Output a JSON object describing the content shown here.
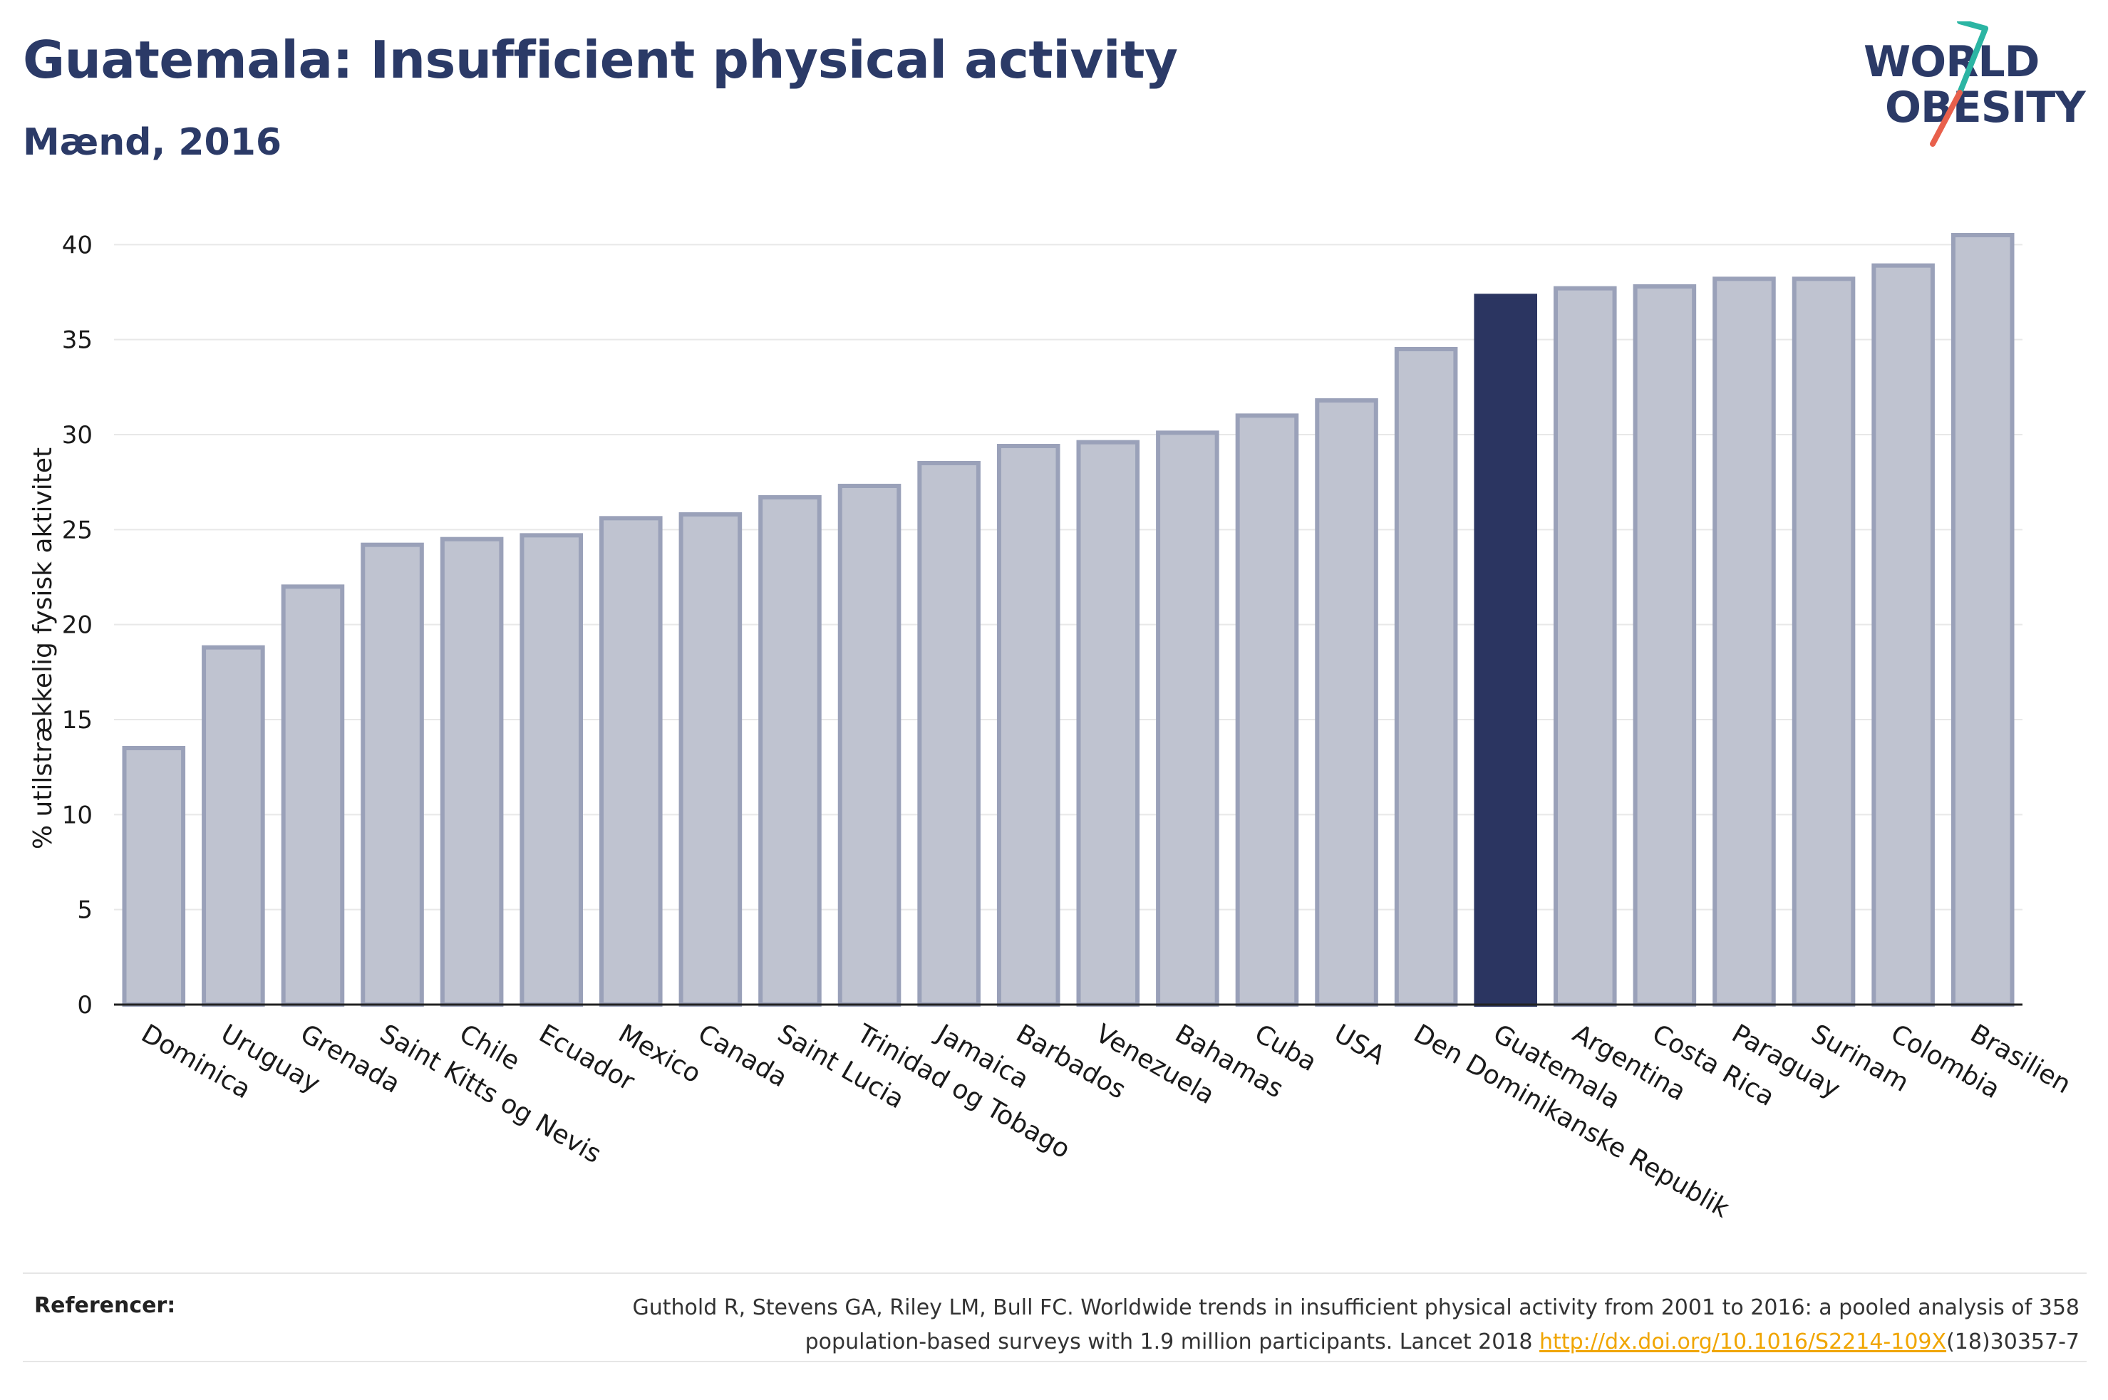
{
  "header": {
    "title": "Guatemala: Insufficient physical activity",
    "subtitle": "Mænd, 2016"
  },
  "logo": {
    "line1": "WORLD",
    "line2": "OBESITY",
    "accent_colors": [
      "#2bb5a3",
      "#e8604c"
    ]
  },
  "colors": {
    "bar_default": "#bfc3d0",
    "bar_default_stroke": "#9aa1b9",
    "bar_highlight": "#2b3561",
    "grid": "#e8e8e8",
    "axis": "#222222",
    "title": "#2b3a67",
    "link": "#f0a500"
  },
  "chart_data": {
    "type": "bar",
    "title": "Guatemala: Insufficient physical activity",
    "subtitle": "Mænd, 2016",
    "xlabel": "",
    "ylabel": "% utilstrækkelig fysisk aktivitet",
    "ylim": [
      0,
      40.5
    ],
    "yticks": [
      0,
      5,
      10,
      15,
      20,
      25,
      30,
      35,
      40
    ],
    "grid": true,
    "highlight": "Guatemala",
    "categories": [
      "Dominica",
      "Uruguay",
      "Grenada",
      "Saint Kitts og Nevis",
      "Chile",
      "Ecuador",
      "Mexico",
      "Canada",
      "Saint Lucia",
      "Trinidad og Tobago",
      "Jamaica",
      "Barbados",
      "Venezuela",
      "Bahamas",
      "Cuba",
      "USA",
      "Den Dominikanske Republik",
      "Guatemala",
      "Argentina",
      "Costa Rica",
      "Paraguay",
      "Surinam",
      "Colombia",
      "Brasilien"
    ],
    "values": [
      13.5,
      18.8,
      22.0,
      24.2,
      24.5,
      24.7,
      25.6,
      25.8,
      26.7,
      27.3,
      28.5,
      29.4,
      29.6,
      30.1,
      31.0,
      31.8,
      34.5,
      37.3,
      37.7,
      37.8,
      38.2,
      38.2,
      38.9,
      40.5
    ]
  },
  "references": {
    "label": "Referencer:",
    "line1": "Guthold R, Stevens GA, Riley LM, Bull FC. Worldwide trends in insufficient physical activity from 2001 to 2016: a pooled analysis of 358",
    "line2_prefix": "population-based surveys with 1.9 million participants. Lancet 2018 ",
    "link_text": "http://dx.doi.org/10.1016/S2214-109X",
    "line2_suffix": "(18)30357-7"
  }
}
